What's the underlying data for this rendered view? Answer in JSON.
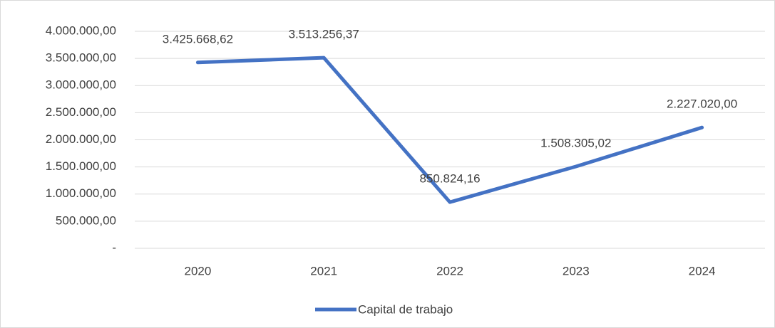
{
  "chart_data": {
    "type": "line",
    "categories": [
      "2020",
      "2021",
      "2022",
      "2023",
      "2024"
    ],
    "series": [
      {
        "name": "Capital de trabajo",
        "color": "#4472c4",
        "values": [
          3425668.62,
          3513256.37,
          850824.16,
          1508305.02,
          2227020.0
        ],
        "value_labels": [
          "3.425.668,62",
          "3.513.256,37",
          "850.824,16",
          "1.508.305,02",
          "2.227.020,00"
        ]
      }
    ],
    "ylim": [
      0,
      4000000
    ],
    "yticks": [
      {
        "value": 0,
        "label": "-"
      },
      {
        "value": 500000,
        "label": "500.000,00"
      },
      {
        "value": 1000000,
        "label": "1.000.000,00"
      },
      {
        "value": 1500000,
        "label": "1.500.000,00"
      },
      {
        "value": 2000000,
        "label": "2.000.000,00"
      },
      {
        "value": 2500000,
        "label": "2.500.000,00"
      },
      {
        "value": 3000000,
        "label": "3.000.000,00"
      },
      {
        "value": 3500000,
        "label": "3.500.000,00"
      },
      {
        "value": 4000000,
        "label": "4.000.000,00"
      }
    ],
    "grid": true,
    "legend": "bottom"
  }
}
